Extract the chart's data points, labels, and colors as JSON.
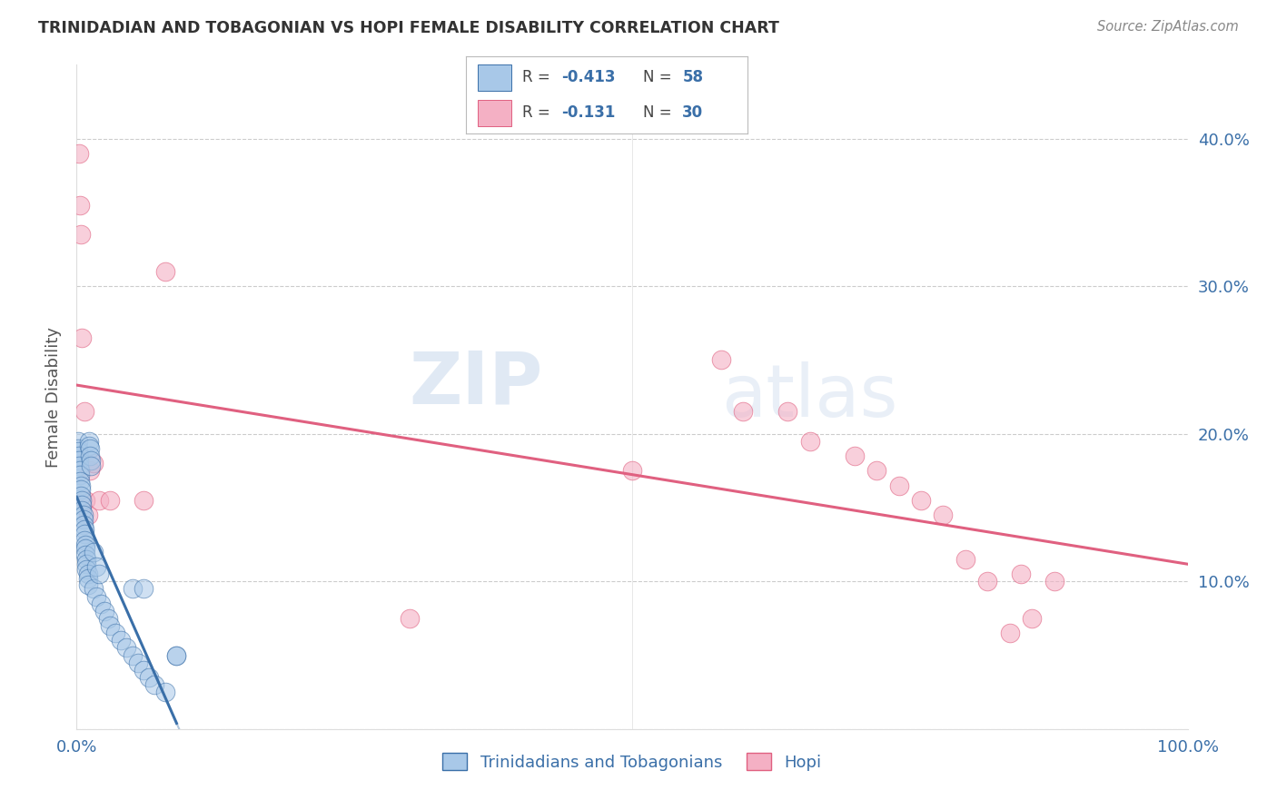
{
  "title": "TRINIDADIAN AND TOBAGONIAN VS HOPI FEMALE DISABILITY CORRELATION CHART",
  "source": "Source: ZipAtlas.com",
  "ylabel": "Female Disability",
  "legend_r1": "R = -0.413",
  "legend_n1": "N = 58",
  "legend_r2": "R = -0.131",
  "legend_n2": "N = 30",
  "legend_label1": "Trinidadians and Tobagonians",
  "legend_label2": "Hopi",
  "blue_color": "#a8c8e8",
  "pink_color": "#f4b0c4",
  "blue_line_color": "#3a6fa8",
  "pink_line_color": "#e06080",
  "text_color": "#3a6fa8",
  "title_color": "#333333",
  "source_color": "#888888",
  "grid_color": "#cccccc",
  "blue_scatter": [
    [
      0.001,
      0.195
    ],
    [
      0.001,
      0.19
    ],
    [
      0.001,
      0.188
    ],
    [
      0.002,
      0.185
    ],
    [
      0.002,
      0.182
    ],
    [
      0.002,
      0.178
    ],
    [
      0.003,
      0.175
    ],
    [
      0.003,
      0.172
    ],
    [
      0.003,
      0.168
    ],
    [
      0.004,
      0.165
    ],
    [
      0.004,
      0.162
    ],
    [
      0.004,
      0.158
    ],
    [
      0.005,
      0.155
    ],
    [
      0.005,
      0.152
    ],
    [
      0.005,
      0.148
    ],
    [
      0.006,
      0.145
    ],
    [
      0.006,
      0.142
    ],
    [
      0.006,
      0.138
    ],
    [
      0.007,
      0.135
    ],
    [
      0.007,
      0.132
    ],
    [
      0.007,
      0.128
    ],
    [
      0.008,
      0.125
    ],
    [
      0.008,
      0.122
    ],
    [
      0.008,
      0.118
    ],
    [
      0.009,
      0.115
    ],
    [
      0.009,
      0.112
    ],
    [
      0.009,
      0.108
    ],
    [
      0.01,
      0.105
    ],
    [
      0.01,
      0.102
    ],
    [
      0.01,
      0.098
    ],
    [
      0.011,
      0.195
    ],
    [
      0.011,
      0.192
    ],
    [
      0.012,
      0.19
    ],
    [
      0.012,
      0.185
    ],
    [
      0.013,
      0.182
    ],
    [
      0.013,
      0.178
    ],
    [
      0.015,
      0.12
    ],
    [
      0.015,
      0.095
    ],
    [
      0.018,
      0.11
    ],
    [
      0.018,
      0.09
    ],
    [
      0.02,
      0.105
    ],
    [
      0.022,
      0.085
    ],
    [
      0.025,
      0.08
    ],
    [
      0.028,
      0.075
    ],
    [
      0.03,
      0.07
    ],
    [
      0.035,
      0.065
    ],
    [
      0.04,
      0.06
    ],
    [
      0.045,
      0.055
    ],
    [
      0.05,
      0.095
    ],
    [
      0.05,
      0.05
    ],
    [
      0.055,
      0.045
    ],
    [
      0.06,
      0.04
    ],
    [
      0.06,
      0.095
    ],
    [
      0.065,
      0.035
    ],
    [
      0.07,
      0.03
    ],
    [
      0.08,
      0.025
    ],
    [
      0.09,
      0.05
    ],
    [
      0.09,
      0.05
    ]
  ],
  "pink_scatter": [
    [
      0.002,
      0.39
    ],
    [
      0.003,
      0.355
    ],
    [
      0.004,
      0.335
    ],
    [
      0.005,
      0.265
    ],
    [
      0.007,
      0.215
    ],
    [
      0.008,
      0.155
    ],
    [
      0.01,
      0.145
    ],
    [
      0.012,
      0.175
    ],
    [
      0.015,
      0.18
    ],
    [
      0.02,
      0.155
    ],
    [
      0.03,
      0.155
    ],
    [
      0.06,
      0.155
    ],
    [
      0.08,
      0.31
    ],
    [
      0.5,
      0.175
    ],
    [
      0.58,
      0.25
    ],
    [
      0.6,
      0.215
    ],
    [
      0.64,
      0.215
    ],
    [
      0.66,
      0.195
    ],
    [
      0.7,
      0.185
    ],
    [
      0.72,
      0.175
    ],
    [
      0.74,
      0.165
    ],
    [
      0.76,
      0.155
    ],
    [
      0.78,
      0.145
    ],
    [
      0.8,
      0.115
    ],
    [
      0.82,
      0.1
    ],
    [
      0.84,
      0.065
    ],
    [
      0.85,
      0.105
    ],
    [
      0.86,
      0.075
    ],
    [
      0.88,
      0.1
    ],
    [
      0.3,
      0.075
    ]
  ],
  "xmin": 0.0,
  "xmax": 1.0,
  "ymin": 0.0,
  "ymax": 0.45,
  "yticks": [
    0.0,
    0.1,
    0.2,
    0.3,
    0.4
  ],
  "ytick_labels": [
    "",
    "10.0%",
    "20.0%",
    "30.0%",
    "40.0%"
  ],
  "watermark_zip": "ZIP",
  "watermark_atlas": "atlas"
}
